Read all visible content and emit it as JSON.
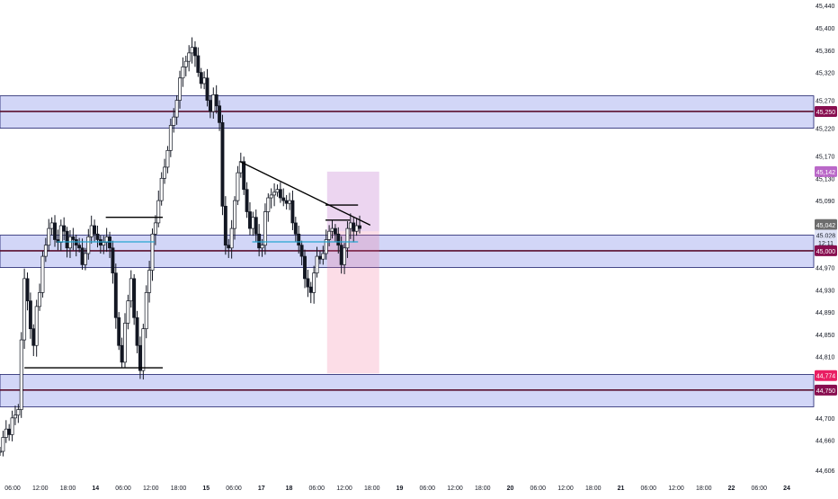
{
  "chart_data": {
    "type": "candlestick",
    "title": "",
    "x_tick_labels": [
      "06:00",
      "12:00",
      "18:00",
      "14",
      "06:00",
      "12:00",
      "18:00",
      "15",
      "06:00",
      "17",
      "18",
      "06:00",
      "12:00",
      "18:00",
      "19",
      "06:00",
      "12:00",
      "18:00",
      "20",
      "06:00",
      "12:00",
      "18:00",
      "21",
      "06:00",
      "12:00",
      "18:00",
      "22",
      "06:00",
      "24"
    ],
    "x_tick_bold": [
      "14",
      "15",
      "17",
      "18",
      "19",
      "20",
      "21",
      "22",
      "24"
    ],
    "y_ticks": [
      "45,440",
      "45,400",
      "45,360",
      "45,320",
      "45,270",
      "45,220",
      "45,170",
      "45,130",
      "45,090",
      "44,970",
      "44,930",
      "44,890",
      "44,850",
      "44,810",
      "44,700",
      "44,660",
      "44,606"
    ],
    "ylim": [
      44590,
      45450
    ],
    "zones": [
      {
        "from": 45220,
        "to": 45278,
        "mid": 45250
      },
      {
        "from": 44970,
        "to": 45028,
        "mid": 45000
      },
      {
        "from": 44720,
        "to": 44778,
        "mid": 44750
      }
    ],
    "horizontal_levels": [
      {
        "price": 45060,
        "start": 0.13,
        "end": 0.2,
        "color": "#000000"
      },
      {
        "price": 44790,
        "start": 0.03,
        "end": 0.2,
        "color": "#000000"
      },
      {
        "price": 45016,
        "start": 0.07,
        "end": 0.19,
        "color": "#26a6d1"
      },
      {
        "price": 45016,
        "start": 0.31,
        "end": 0.44,
        "color": "#26a6d1"
      },
      {
        "price": 45082,
        "start": 0.4,
        "end": 0.44,
        "color": "#000000"
      },
      {
        "price": 45055,
        "start": 0.4,
        "end": 0.43,
        "color": "#000000"
      }
    ],
    "trendline": {
      "from": {
        "t": 0.295,
        "price": 45160
      },
      "to": {
        "t": 0.455,
        "price": 45046
      }
    },
    "position_box": {
      "t_start": 0.402,
      "t_end": 0.466,
      "top": 45142,
      "entry": 45035,
      "bottom": 44780
    },
    "price_labels": [
      {
        "text": "45,250",
        "price": 45250,
        "bg": "#880e4f"
      },
      {
        "text": "45,142",
        "price": 45142,
        "bg": "#ba68c8"
      },
      {
        "text": "45,042",
        "price": 45047,
        "bg": "#6d6d6d"
      },
      {
        "text": "45,028",
        "price": 45028,
        "bg": "#dfe3f7",
        "fg": "#131722"
      },
      {
        "text": "12:11",
        "price": 45014,
        "bg": "#dfe3f7",
        "fg": "#131722"
      },
      {
        "text": "45,000",
        "price": 45000,
        "bg": "#880e4f"
      },
      {
        "text": "44,774",
        "price": 44776,
        "bg": "#e91e63"
      },
      {
        "text": "44,750",
        "price": 44750,
        "bg": "#880e4f"
      }
    ],
    "price_path": [
      44640,
      44665,
      44680,
      44670,
      44700,
      44705,
      44715,
      44840,
      44950,
      44910,
      44860,
      44830,
      44900,
      44925,
      44990,
      45010,
      45040,
      45050,
      45020,
      45015,
      45045,
      45035,
      45005,
      45025,
      45020,
      45010,
      45005,
      44975,
      44995,
      45025,
      45045,
      45030,
      45020,
      45010,
      45015,
      45025,
      45005,
      44960,
      44880,
      44830,
      44800,
      44870,
      44910,
      44950,
      44880,
      44830,
      44785,
      44860,
      44925,
      44965,
      45030,
      45050,
      45090,
      45130,
      45150,
      45180,
      45225,
      45240,
      45270,
      45310,
      45330,
      45340,
      45355,
      45365,
      45350,
      45320,
      45300,
      45310,
      45270,
      45250,
      45280,
      45260,
      45230,
      45080,
      45010,
      45005,
      45040,
      45090,
      45140,
      45160,
      45110,
      45070,
      45040,
      45060,
      45030,
      45005,
      45010,
      45070,
      45095,
      45100,
      45105,
      45110,
      45095,
      45090,
      45085,
      45090,
      45050,
      45030,
      45010,
      44990,
      44950,
      44935,
      44925,
      44960,
      44990,
      44985,
      44995,
      45020,
      45035,
      45040,
      45030,
      45010,
      44975,
      45005,
      45040,
      45050,
      45035,
      45045,
      45040
    ]
  }
}
